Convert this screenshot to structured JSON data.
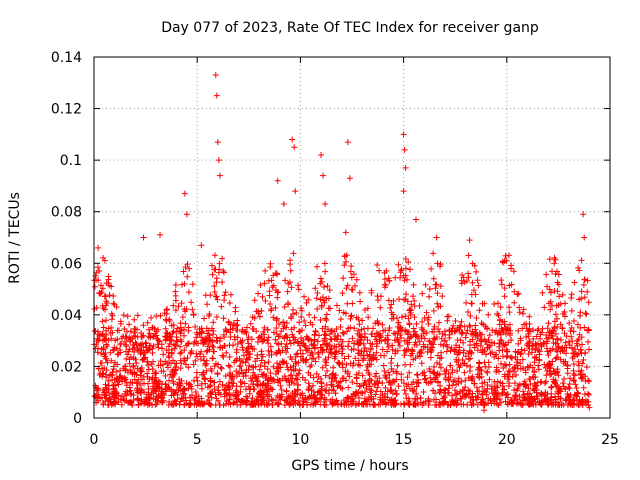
{
  "chart_data": {
    "type": "scatter",
    "title": "Day 077 of 2023, Rate Of TEC Index for receiver ganp",
    "xlabel": "GPS time / hours",
    "ylabel": "ROTI / TECUs",
    "xlim": [
      0,
      25
    ],
    "ylim": [
      0,
      0.14
    ],
    "x_ticks": [
      0,
      5,
      10,
      15,
      20,
      25
    ],
    "x_tick_labels": [
      "0",
      "5",
      "10",
      "15",
      "20",
      "25"
    ],
    "y_ticks": [
      0,
      0.02,
      0.04,
      0.06,
      0.08,
      0.1,
      0.12,
      0.14
    ],
    "y_tick_labels": [
      "0",
      "0.02",
      "0.04",
      "0.06",
      "0.08",
      "0.1",
      "0.12",
      "0.14"
    ],
    "grid": true,
    "legend": "none",
    "marker": "+",
    "series": [
      {
        "name": "ROTI",
        "color": "#ff0000",
        "x_range": [
          0,
          24
        ],
        "bulk_range": [
          0.005,
          0.035
        ],
        "typical_peak": 0.04,
        "notable_points": [
          {
            "x": 0.2,
            "y": 0.066
          },
          {
            "x": 0.25,
            "y": 0.057
          },
          {
            "x": 2.4,
            "y": 0.07
          },
          {
            "x": 3.2,
            "y": 0.071
          },
          {
            "x": 4.4,
            "y": 0.087
          },
          {
            "x": 4.5,
            "y": 0.079
          },
          {
            "x": 5.2,
            "y": 0.067
          },
          {
            "x": 5.9,
            "y": 0.133
          },
          {
            "x": 5.95,
            "y": 0.125
          },
          {
            "x": 6.0,
            "y": 0.107
          },
          {
            "x": 6.05,
            "y": 0.1
          },
          {
            "x": 6.1,
            "y": 0.094
          },
          {
            "x": 8.9,
            "y": 0.092
          },
          {
            "x": 9.2,
            "y": 0.083
          },
          {
            "x": 9.6,
            "y": 0.108
          },
          {
            "x": 9.7,
            "y": 0.105
          },
          {
            "x": 9.75,
            "y": 0.088
          },
          {
            "x": 11.0,
            "y": 0.102
          },
          {
            "x": 11.1,
            "y": 0.094
          },
          {
            "x": 11.2,
            "y": 0.083
          },
          {
            "x": 12.3,
            "y": 0.107
          },
          {
            "x": 12.4,
            "y": 0.093
          },
          {
            "x": 12.2,
            "y": 0.072
          },
          {
            "x": 15.0,
            "y": 0.11
          },
          {
            "x": 15.05,
            "y": 0.104
          },
          {
            "x": 15.1,
            "y": 0.097
          },
          {
            "x": 15.0,
            "y": 0.088
          },
          {
            "x": 15.6,
            "y": 0.077
          },
          {
            "x": 16.6,
            "y": 0.07
          },
          {
            "x": 18.2,
            "y": 0.069
          },
          {
            "x": 18.15,
            "y": 0.063
          },
          {
            "x": 20.2,
            "y": 0.058
          },
          {
            "x": 22.3,
            "y": 0.06
          },
          {
            "x": 23.7,
            "y": 0.079
          },
          {
            "x": 23.75,
            "y": 0.07
          },
          {
            "x": 18.9,
            "y": 0.003
          },
          {
            "x": 24.0,
            "y": 0.004
          }
        ]
      }
    ]
  }
}
